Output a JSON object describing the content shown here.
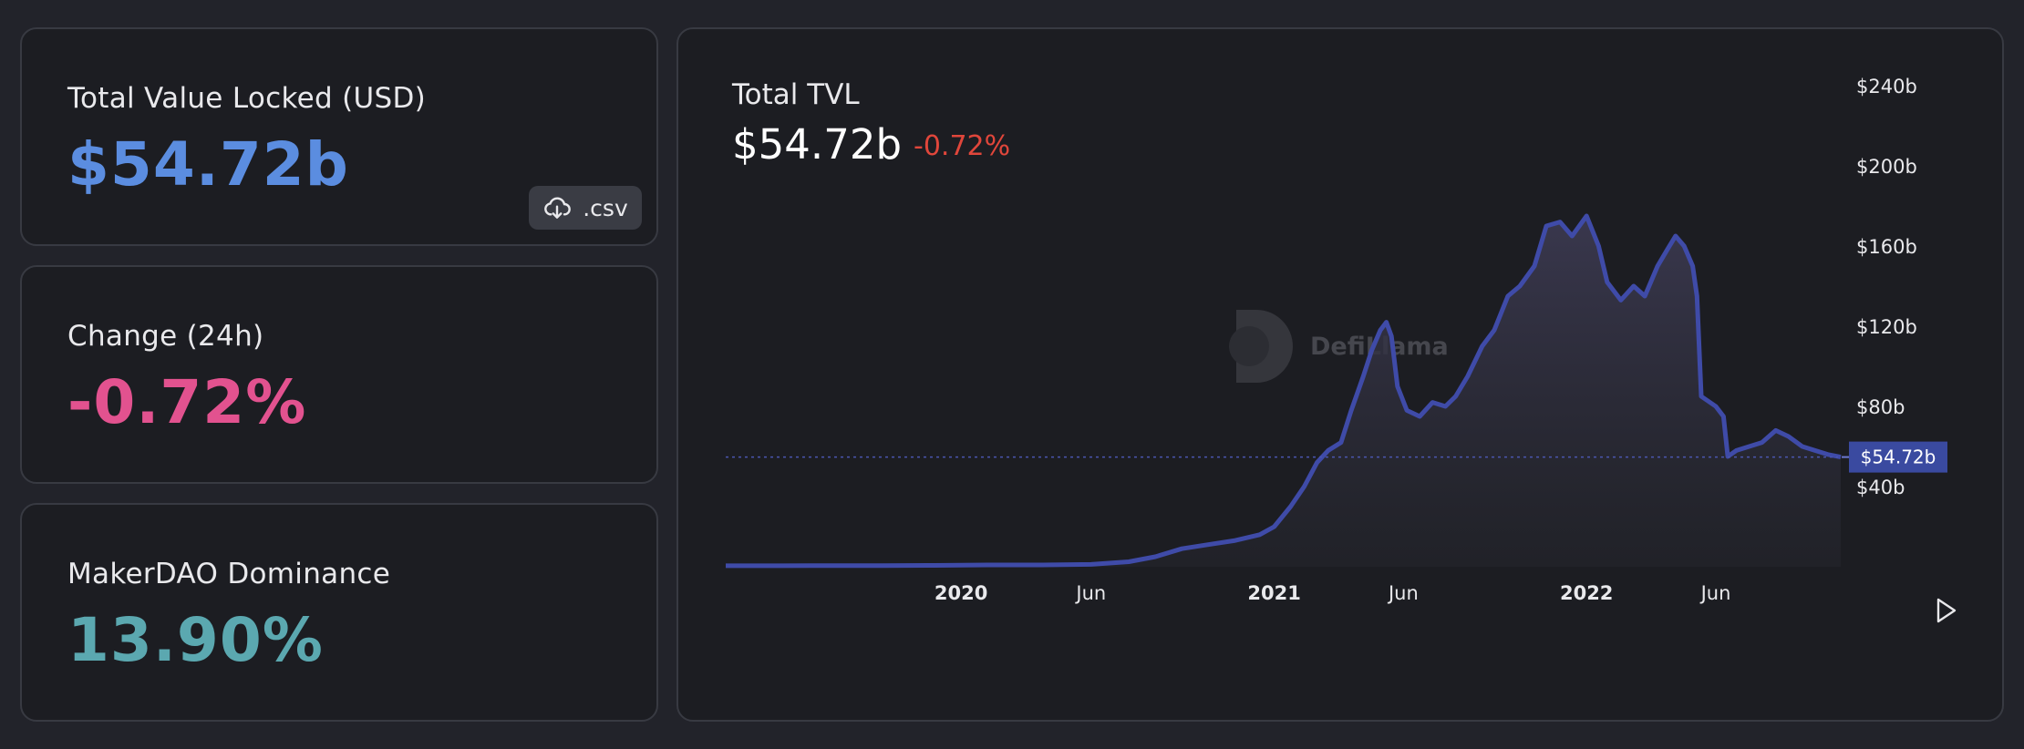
{
  "cards": [
    {
      "label": "Total Value Locked (USD)",
      "value": "$54.72b",
      "color": "#5b8de0"
    },
    {
      "label": "Change (24h)",
      "value": "-0.72%",
      "color": "#e2528f"
    },
    {
      "label": "MakerDAO Dominance",
      "value": "13.90%",
      "color": "#5ba8b0"
    }
  ],
  "csv_label": ".csv",
  "icons": {
    "download": "cloud-download-icon",
    "play": "play-icon"
  },
  "watermark": "DefiLlama",
  "chart": {
    "title": "Total TVL",
    "value": "$54.72b",
    "change": "-0.72%",
    "change_color": "#e0463b",
    "line_color": "#3f4ba8"
  },
  "chart_data": {
    "type": "area",
    "series": [
      {
        "x": [
          "2019-04-01",
          "2019-06-01",
          "2019-08-01",
          "2019-10-01",
          "2019-12-01",
          "2020-02-01",
          "2020-04-01",
          "2020-06-01",
          "2020-07-15",
          "2020-08-15",
          "2020-09-15",
          "2020-10-15",
          "2020-11-15",
          "2020-12-15",
          "2021-01-01",
          "2021-01-20",
          "2021-02-05",
          "2021-02-20",
          "2021-03-05",
          "2021-03-20",
          "2021-04-01",
          "2021-04-15",
          "2021-04-25",
          "2021-05-05",
          "2021-05-12",
          "2021-05-18",
          "2021-05-25",
          "2021-06-05",
          "2021-06-20",
          "2021-07-05",
          "2021-07-20",
          "2021-08-01",
          "2021-08-15",
          "2021-09-01",
          "2021-09-15",
          "2021-10-01",
          "2021-10-15",
          "2021-11-01",
          "2021-11-15",
          "2021-12-01",
          "2021-12-15",
          "2022-01-01",
          "2022-01-15",
          "2022-01-25",
          "2022-02-10",
          "2022-02-25",
          "2022-03-10",
          "2022-03-25",
          "2022-04-05",
          "2022-04-15",
          "2022-04-25",
          "2022-05-05",
          "2022-05-10",
          "2022-05-15",
          "2022-06-01",
          "2022-06-10",
          "2022-06-15",
          "2022-06-25",
          "2022-07-10",
          "2022-07-25",
          "2022-08-10",
          "2022-08-25",
          "2022-09-10",
          "2022-09-25",
          "2022-10-10",
          "2022-10-25"
        ],
        "values": [
          0.5,
          0.5,
          0.6,
          0.6,
          0.7,
          0.9,
          0.9,
          1.2,
          2.5,
          5,
          9,
          11,
          13,
          16,
          20,
          30,
          40,
          52,
          58,
          62,
          78,
          95,
          108,
          118,
          122,
          115,
          90,
          78,
          75,
          82,
          80,
          85,
          95,
          110,
          118,
          135,
          140,
          150,
          170,
          172,
          165,
          175,
          160,
          142,
          133,
          140,
          135,
          150,
          158,
          165,
          160,
          150,
          135,
          85,
          80,
          75,
          55,
          58,
          60,
          62,
          68,
          65,
          60,
          58,
          56,
          54.72
        ]
      }
    ],
    "ylim": [
      0,
      250
    ],
    "y_ticks": [
      40,
      80,
      120,
      160,
      200,
      240
    ],
    "y_tick_labels": [
      "$40b",
      "$80b",
      "$120b",
      "$160b",
      "$200b",
      "$240b"
    ],
    "x_ticks": [
      "2020-01-01",
      "2020-06-01",
      "2021-01-01",
      "2021-06-01",
      "2022-01-01",
      "2022-06-01"
    ],
    "x_tick_labels": [
      "2020",
      "Jun",
      "2021",
      "Jun",
      "2022",
      "Jun"
    ],
    "current_value": 54.72,
    "current_label": "$54.72b",
    "grid": false
  }
}
